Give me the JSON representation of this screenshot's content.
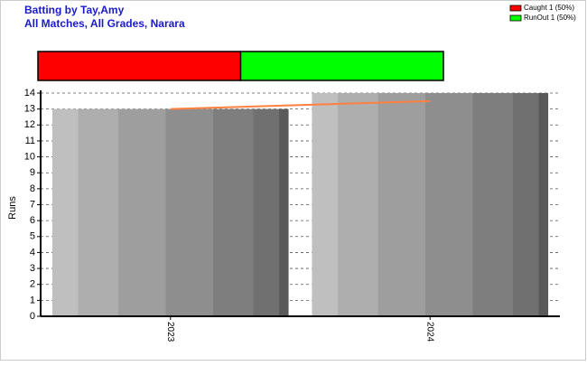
{
  "chart_data": [
    {
      "type": "stacked-bar",
      "title": "Batting by Tay,Amy",
      "subtitle": "All Matches, All Grades, Narara",
      "series": [
        {
          "name": "Caught 1 (50%)",
          "color": "#ff0000",
          "values": [
            50
          ]
        },
        {
          "name": "RunOut 1 (50%)",
          "color": "#00ff00",
          "values": [
            50
          ]
        }
      ],
      "xlim": [
        0,
        100
      ]
    },
    {
      "type": "bar",
      "ylabel": "Runs",
      "categories": [
        "2023",
        "2024"
      ],
      "series": [
        {
          "type": "bar",
          "values": [
            13,
            14
          ]
        },
        {
          "type": "line",
          "color": "#ff8040",
          "values": [
            13,
            13.5
          ]
        }
      ],
      "ylim": [
        0,
        14
      ],
      "yticks": [
        0,
        1,
        2,
        3,
        4,
        5,
        6,
        7,
        8,
        9,
        10,
        11,
        12,
        13,
        14
      ],
      "grid": true
    }
  ]
}
